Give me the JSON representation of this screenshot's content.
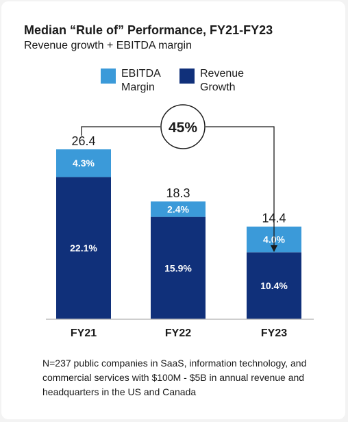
{
  "title": "Median “Rule of” Performance, FY21-FY23",
  "subtitle": "Revenue growth + EBITDA margin",
  "legend": [
    {
      "label": "EBITDA Margin",
      "color": "#3b9ad9"
    },
    {
      "label": "Revenue Growth",
      "color": "#10307a"
    }
  ],
  "annotation": {
    "label": "45%"
  },
  "footnote": "N=237 public companies in SaaS, information technology, and commercial services with $100M - $5B in annual revenue and headquarters in the US and Canada",
  "chart_data": {
    "type": "bar",
    "stacked": true,
    "categories": [
      "FY21",
      "FY22",
      "FY23"
    ],
    "series": [
      {
        "name": "Revenue Growth",
        "values": [
          22.1,
          15.9,
          10.4
        ],
        "labels": [
          "22.1%",
          "15.9%",
          "10.4%"
        ],
        "color": "#10307a"
      },
      {
        "name": "EBITDA Margin",
        "values": [
          4.3,
          2.4,
          4.0
        ],
        "labels": [
          "4.3%",
          "2.4%",
          "4.0%"
        ],
        "color": "#3b9ad9"
      }
    ],
    "totals": [
      "26.4",
      "18.3",
      "14.4"
    ],
    "ylim": [
      0,
      26.4
    ],
    "grid": false,
    "legend_position": "top"
  }
}
